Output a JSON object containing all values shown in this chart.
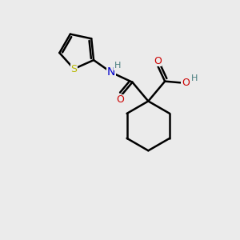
{
  "background_color": "#ebebeb",
  "atom_colors": {
    "S": "#b8b800",
    "N": "#0000cc",
    "O": "#cc0000",
    "H_teal": "#4a7f80",
    "C": "#000000"
  },
  "figsize": [
    3.0,
    3.0
  ],
  "dpi": 100,
  "bond_lw": 1.8,
  "font_size": 9
}
